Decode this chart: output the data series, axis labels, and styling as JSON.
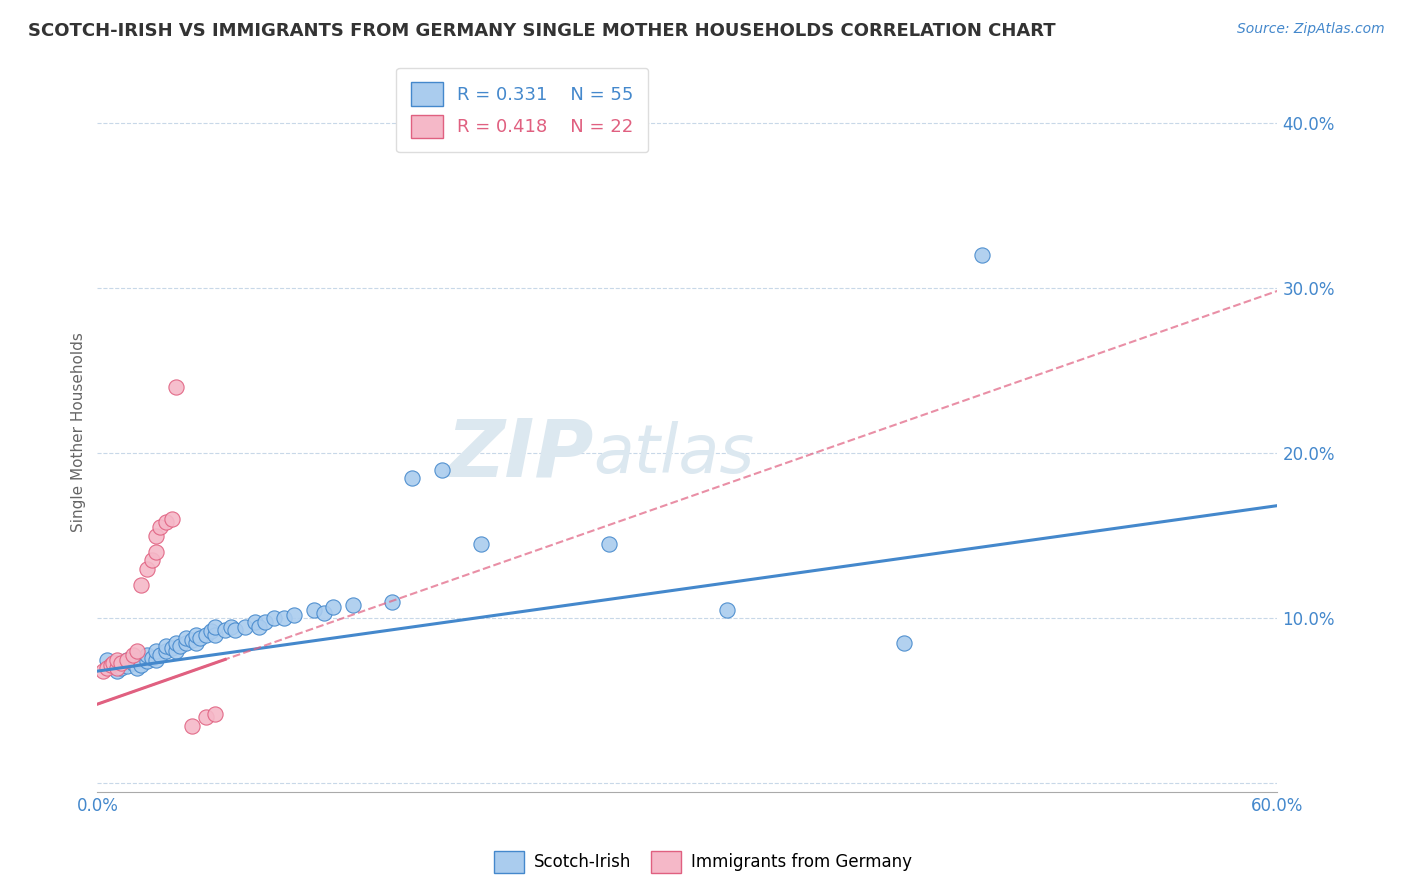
{
  "title": "SCOTCH-IRISH VS IMMIGRANTS FROM GERMANY SINGLE MOTHER HOUSEHOLDS CORRELATION CHART",
  "source_text": "Source: ZipAtlas.com",
  "ylabel": "Single Mother Households",
  "xlim": [
    0.0,
    0.6
  ],
  "ylim": [
    -0.005,
    0.43
  ],
  "xticks": [
    0.0,
    0.1,
    0.2,
    0.3,
    0.4,
    0.5,
    0.6
  ],
  "xtick_labels": [
    "0.0%",
    "",
    "",
    "",
    "",
    "",
    "60.0%"
  ],
  "yticks": [
    0.0,
    0.1,
    0.2,
    0.3,
    0.4
  ],
  "ytick_labels": [
    "",
    "10.0%",
    "20.0%",
    "30.0%",
    "40.0%"
  ],
  "blue_R": 0.331,
  "blue_N": 55,
  "pink_R": 0.418,
  "pink_N": 22,
  "blue_scatter": [
    [
      0.005,
      0.075
    ],
    [
      0.008,
      0.072
    ],
    [
      0.01,
      0.068
    ],
    [
      0.01,
      0.073
    ],
    [
      0.012,
      0.07
    ],
    [
      0.015,
      0.071
    ],
    [
      0.015,
      0.075
    ],
    [
      0.018,
      0.073
    ],
    [
      0.02,
      0.07
    ],
    [
      0.02,
      0.075
    ],
    [
      0.022,
      0.072
    ],
    [
      0.025,
      0.074
    ],
    [
      0.025,
      0.078
    ],
    [
      0.028,
      0.076
    ],
    [
      0.03,
      0.075
    ],
    [
      0.03,
      0.08
    ],
    [
      0.032,
      0.078
    ],
    [
      0.035,
      0.08
    ],
    [
      0.035,
      0.083
    ],
    [
      0.038,
      0.082
    ],
    [
      0.04,
      0.08
    ],
    [
      0.04,
      0.085
    ],
    [
      0.042,
      0.083
    ],
    [
      0.045,
      0.085
    ],
    [
      0.045,
      0.088
    ],
    [
      0.048,
      0.087
    ],
    [
      0.05,
      0.085
    ],
    [
      0.05,
      0.09
    ],
    [
      0.052,
      0.088
    ],
    [
      0.055,
      0.09
    ],
    [
      0.058,
      0.092
    ],
    [
      0.06,
      0.09
    ],
    [
      0.06,
      0.095
    ],
    [
      0.065,
      0.093
    ],
    [
      0.068,
      0.095
    ],
    [
      0.07,
      0.093
    ],
    [
      0.075,
      0.095
    ],
    [
      0.08,
      0.098
    ],
    [
      0.082,
      0.095
    ],
    [
      0.085,
      0.098
    ],
    [
      0.09,
      0.1
    ],
    [
      0.095,
      0.1
    ],
    [
      0.1,
      0.102
    ],
    [
      0.11,
      0.105
    ],
    [
      0.115,
      0.103
    ],
    [
      0.12,
      0.107
    ],
    [
      0.13,
      0.108
    ],
    [
      0.15,
      0.11
    ],
    [
      0.16,
      0.185
    ],
    [
      0.175,
      0.19
    ],
    [
      0.195,
      0.145
    ],
    [
      0.26,
      0.145
    ],
    [
      0.32,
      0.105
    ],
    [
      0.41,
      0.085
    ],
    [
      0.45,
      0.32
    ]
  ],
  "pink_scatter": [
    [
      0.003,
      0.068
    ],
    [
      0.005,
      0.07
    ],
    [
      0.007,
      0.072
    ],
    [
      0.008,
      0.073
    ],
    [
      0.01,
      0.07
    ],
    [
      0.01,
      0.075
    ],
    [
      0.012,
      0.073
    ],
    [
      0.015,
      0.075
    ],
    [
      0.018,
      0.078
    ],
    [
      0.02,
      0.08
    ],
    [
      0.022,
      0.12
    ],
    [
      0.025,
      0.13
    ],
    [
      0.028,
      0.135
    ],
    [
      0.03,
      0.14
    ],
    [
      0.03,
      0.15
    ],
    [
      0.032,
      0.155
    ],
    [
      0.035,
      0.158
    ],
    [
      0.038,
      0.16
    ],
    [
      0.04,
      0.24
    ],
    [
      0.048,
      0.035
    ],
    [
      0.055,
      0.04
    ],
    [
      0.06,
      0.042
    ]
  ],
  "blue_color": "#4488cc",
  "blue_color_light": "#aaccee",
  "pink_color": "#f5b8c8",
  "pink_color_dark": "#e06080",
  "watermark_color": "#dce8f0",
  "background_color": "#ffffff",
  "grid_color": "#c8d8e8",
  "tick_color": "#4488cc",
  "title_color": "#333333"
}
